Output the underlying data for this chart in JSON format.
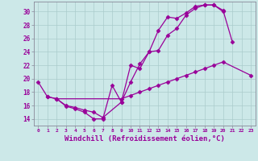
{
  "background_color": "#cce8e8",
  "grid_color": "#aacccc",
  "line_color": "#990099",
  "marker": "D",
  "markersize": 2.5,
  "linewidth": 0.9,
  "xlabel": "Windchill (Refroidissement éolien,°C)",
  "xlabel_fontsize": 6.5,
  "ytick_labels": [
    "14",
    "16",
    "18",
    "20",
    "22",
    "24",
    "26",
    "28",
    "30"
  ],
  "ytick_vals": [
    14,
    16,
    18,
    20,
    22,
    24,
    26,
    28,
    30
  ],
  "xtick_labels": [
    "0",
    "1",
    "2",
    "3",
    "4",
    "5",
    "6",
    "7",
    "8",
    "9",
    "10",
    "11",
    "12",
    "13",
    "14",
    "15",
    "16",
    "17",
    "18",
    "19",
    "20",
    "21",
    "22",
    "23"
  ],
  "ylim": [
    13.0,
    31.5
  ],
  "xlim": [
    -0.5,
    23.5
  ],
  "s1x": [
    0,
    1,
    2,
    3,
    4,
    5,
    6,
    7,
    8,
    9,
    10,
    11,
    12,
    13,
    14,
    15,
    16,
    17,
    18,
    19,
    20,
    21
  ],
  "s1y": [
    19.5,
    17.3,
    17.0,
    15.9,
    15.5,
    15.0,
    14.0,
    14.0,
    19.0,
    16.5,
    22.0,
    21.5,
    24.0,
    27.2,
    29.2,
    29.0,
    29.8,
    30.8,
    31.0,
    31.0,
    30.2,
    25.5
  ],
  "s2x": [
    2,
    3,
    4,
    5,
    6,
    7,
    9,
    10,
    11,
    12,
    13,
    14,
    15,
    16,
    17,
    18,
    19,
    20
  ],
  "s2y": [
    17.0,
    16.0,
    15.7,
    15.3,
    15.0,
    14.2,
    16.5,
    19.5,
    22.2,
    24.0,
    24.2,
    26.5,
    27.5,
    29.5,
    30.5,
    31.0,
    31.0,
    30.0
  ],
  "s3x": [
    1,
    2,
    9,
    10,
    11,
    12,
    13,
    14,
    15,
    16,
    17,
    18,
    19,
    20,
    23
  ],
  "s3y": [
    17.3,
    17.0,
    17.0,
    17.5,
    18.0,
    18.5,
    19.0,
    19.5,
    20.0,
    20.5,
    21.0,
    21.5,
    22.0,
    22.5,
    20.5
  ]
}
